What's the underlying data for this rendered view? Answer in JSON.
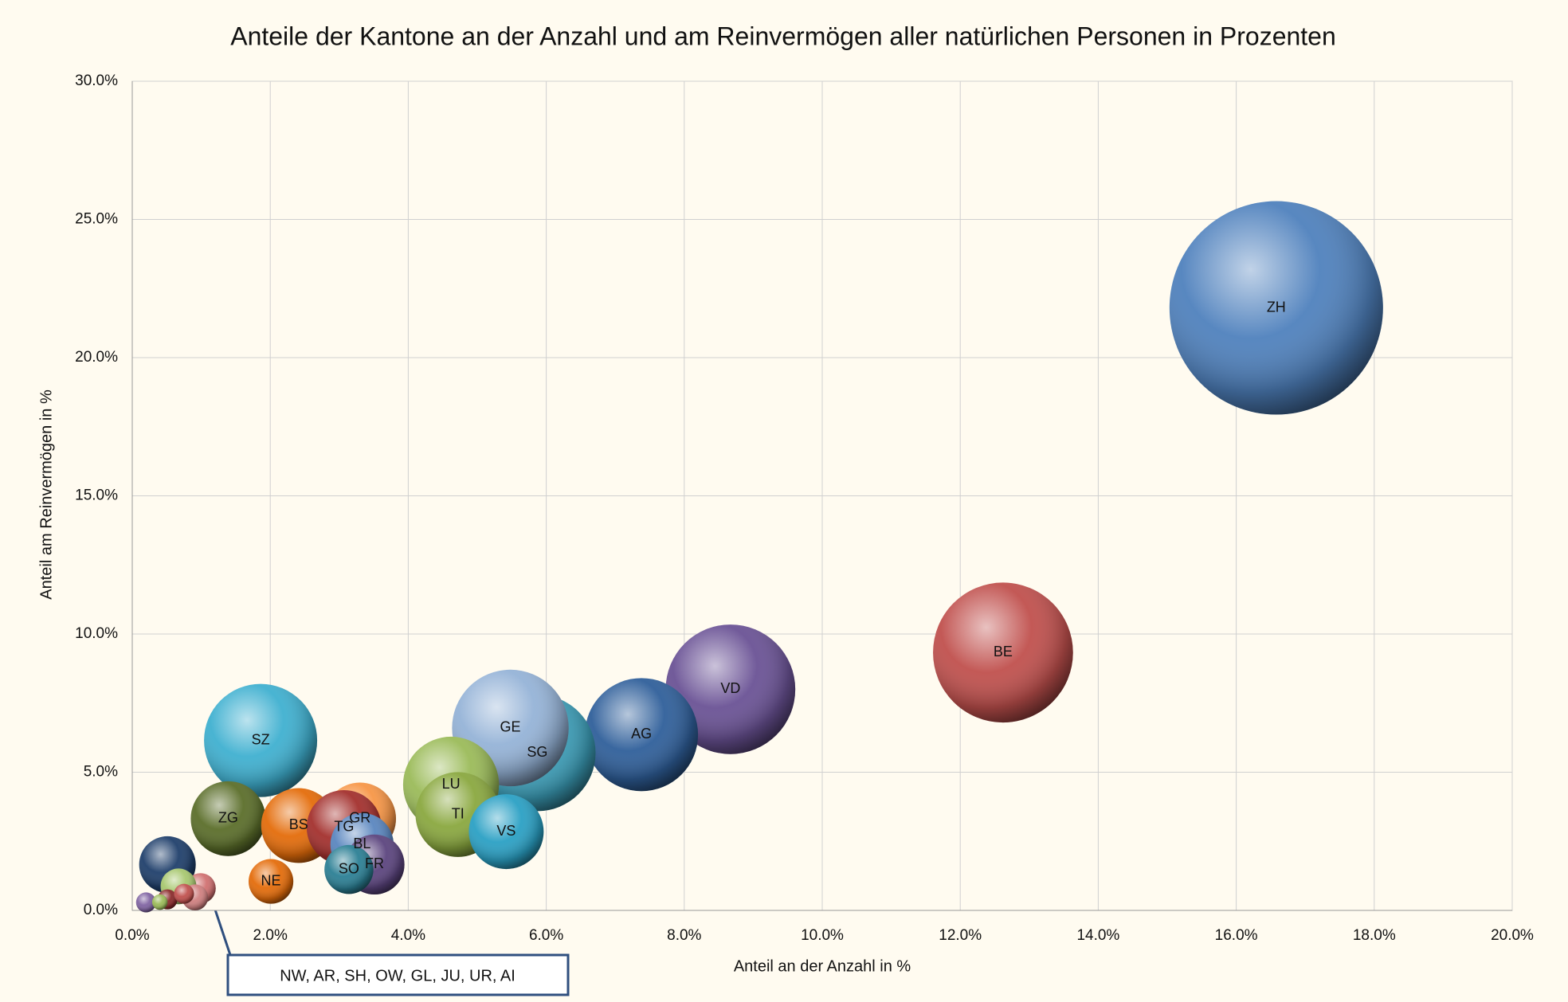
{
  "chart_data": {
    "type": "bubble",
    "title": "Anteile der Kantone an der Anzahl und am Reinvermögen aller natürlichen Personen in Prozenten",
    "x_label": "Anteil an der Anzahl in %",
    "y_label": "Anteil am Reinvermögen in %",
    "annotation": "NW, AR, SH, OW, GL, JU, UR, AI",
    "categories": [
      "ZH",
      "BE",
      "VD",
      "AG",
      "SG",
      "GE",
      "SZ",
      "LU",
      "TI",
      "VS",
      "ZG",
      "BS",
      "GR",
      "TG",
      "BL",
      "FR",
      "SO",
      "NE",
      null,
      null,
      null,
      null,
      null,
      null,
      null,
      null
    ],
    "x": [
      16.58,
      12.62,
      8.67,
      7.38,
      5.87,
      5.48,
      1.86,
      4.62,
      4.72,
      5.42,
      1.39,
      2.41,
      3.3,
      3.07,
      3.33,
      3.51,
      3.14,
      2.01,
      0.51,
      0.99,
      0.67,
      0.91,
      0.51,
      0.2,
      0.75,
      0.4
    ],
    "values": [
      21.8,
      9.33,
      8.0,
      6.36,
      5.7,
      6.6,
      6.15,
      4.55,
      3.47,
      2.85,
      3.32,
      3.07,
      3.32,
      3.0,
      2.38,
      1.66,
      1.48,
      1.05,
      1.66,
      0.8,
      0.87,
      0.47,
      0.4,
      0.29,
      0.6,
      0.3
    ],
    "sizes": [
      114,
      49,
      42,
      32,
      34,
      34,
      32,
      23,
      18,
      14,
      14,
      14,
      13,
      14,
      10,
      9,
      6,
      5,
      8,
      2.3,
      3.2,
      1.7,
      1,
      1,
      1,
      0.6
    ],
    "colors": [
      "#4f81bd",
      "#c0504d",
      "#6a5295",
      "#2f5f9a",
      "#3a9bb5",
      "#95b3d7",
      "#3fb0d0",
      "#9bbb59",
      "#8aa83f",
      "#2aa0c4",
      "#5b6e2a",
      "#e46c0a",
      "#f79646",
      "#a3302d",
      "#5a86bf",
      "#5b447e",
      "#2b7f94",
      "#e46c0a",
      "#1f3f6b",
      "#d07070",
      "#a8c870",
      "#d08080",
      "#8a2a2a",
      "#8064a2",
      "#c0504d",
      "#9bbb59"
    ],
    "xlim": [
      0,
      20
    ],
    "ylim": [
      0,
      30
    ],
    "xticks": [
      {
        "value": 0,
        "label": "0.0%"
      },
      {
        "value": 2,
        "label": "2.0%"
      },
      {
        "value": 4,
        "label": "4.0%"
      },
      {
        "value": 6,
        "label": "6.0%"
      },
      {
        "value": 8,
        "label": "8.0%"
      },
      {
        "value": 10,
        "label": "10.0%"
      },
      {
        "value": 12,
        "label": "12.0%"
      },
      {
        "value": 14,
        "label": "14.0%"
      },
      {
        "value": 16,
        "label": "16.0%"
      },
      {
        "value": 18,
        "label": "18.0%"
      },
      {
        "value": 20,
        "label": "20.0%"
      }
    ],
    "yticks": [
      {
        "value": 0,
        "label": "0.0%"
      },
      {
        "value": 5,
        "label": "5.0%"
      },
      {
        "value": 10,
        "label": "10.0%"
      },
      {
        "value": 15,
        "label": "15.0%"
      },
      {
        "value": 20,
        "label": "20.0%"
      },
      {
        "value": 25,
        "label": "25.0%"
      },
      {
        "value": 30,
        "label": "30.0%"
      }
    ],
    "grid": true
  }
}
